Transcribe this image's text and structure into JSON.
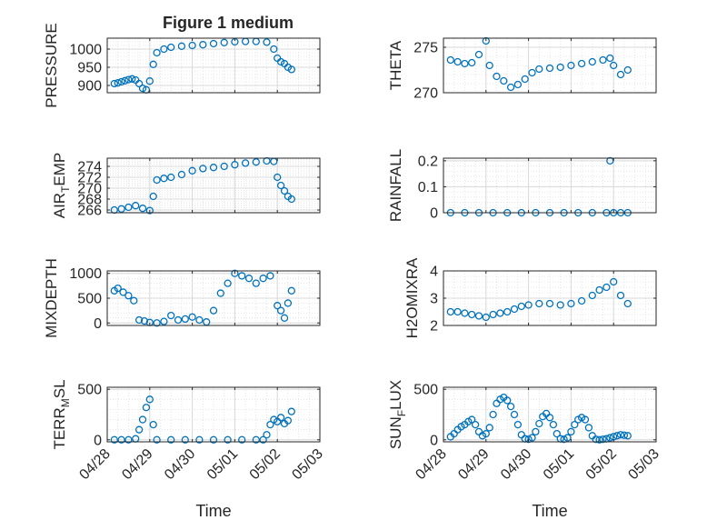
{
  "figure": {
    "title": "Figure 1 medium",
    "background": "#ffffff",
    "marker_color": "#0072bd",
    "axis_color": "#262626",
    "grid_color": "#dfdfdf"
  },
  "chart_data": [
    {
      "type": "scatter",
      "title": "Figure 1 medium",
      "ylabel": "PRESSURE",
      "xlabel": "",
      "xlim": [
        "04/28",
        "05/03"
      ],
      "ylim": [
        880,
        1030
      ],
      "yticks": [
        900,
        950,
        1000
      ],
      "xticks": [],
      "grid": true,
      "minor_grid": true,
      "x": [
        "04/28 04:00",
        "04/28 06:00",
        "04/28 08:00",
        "04/28 10:00",
        "04/28 12:00",
        "04/28 14:00",
        "04/28 16:00",
        "04/28 18:00",
        "04/28 20:00",
        "04/28 22:00",
        "04/29 00:00",
        "04/29 02:00",
        "04/29 04:00",
        "04/29 08:00",
        "04/29 12:00",
        "04/29 18:00",
        "04/30 00:00",
        "04/30 06:00",
        "04/30 12:00",
        "04/30 18:00",
        "05/01 00:00",
        "05/01 06:00",
        "05/01 12:00",
        "05/01 18:00",
        "05/01 22:00",
        "05/02 00:00",
        "05/02 02:00",
        "05/02 04:00",
        "05/02 06:00",
        "05/02 08:00"
      ],
      "y": [
        905,
        907,
        910,
        913,
        916,
        918,
        915,
        905,
        892,
        888,
        912,
        958,
        990,
        1000,
        1005,
        1008,
        1010,
        1012,
        1015,
        1018,
        1020,
        1021,
        1021,
        1019,
        1000,
        975,
        965,
        960,
        950,
        944
      ]
    },
    {
      "type": "scatter",
      "ylabel": "THETA",
      "xlabel": "",
      "xlim": [
        "04/28",
        "05/03"
      ],
      "ylim": [
        270,
        276
      ],
      "yticks": [
        270,
        275
      ],
      "xticks": [],
      "grid": true,
      "minor_grid": true,
      "x": [
        "04/28 04:00",
        "04/28 08:00",
        "04/28 12:00",
        "04/28 16:00",
        "04/28 20:00",
        "04/29 00:00",
        "04/29 02:00",
        "04/29 06:00",
        "04/29 10:00",
        "04/29 14:00",
        "04/29 18:00",
        "04/29 22:00",
        "04/30 02:00",
        "04/30 06:00",
        "04/30 12:00",
        "04/30 18:00",
        "05/01 00:00",
        "05/01 06:00",
        "05/01 12:00",
        "05/01 18:00",
        "05/01 22:00",
        "05/02 00:00",
        "05/02 04:00",
        "05/02 08:00"
      ],
      "y": [
        273.6,
        273.4,
        273.2,
        273.3,
        274.2,
        275.7,
        273.0,
        271.8,
        271.3,
        270.6,
        270.9,
        271.5,
        272.2,
        272.6,
        272.7,
        272.8,
        273.0,
        273.2,
        273.4,
        273.6,
        273.8,
        273.0,
        272.0,
        272.5
      ]
    },
    {
      "type": "scatter",
      "ylabel": "AIR_TEMP",
      "xlabel": "",
      "xlim": [
        "04/28",
        "05/03"
      ],
      "ylim": [
        265.5,
        275.5
      ],
      "yticks": [
        266,
        268,
        270,
        272,
        274
      ],
      "xticks": [],
      "grid": true,
      "minor_grid": true,
      "x": [
        "04/28 04:00",
        "04/28 08:00",
        "04/28 12:00",
        "04/28 16:00",
        "04/28 20:00",
        "04/29 00:00",
        "04/29 02:00",
        "04/29 04:00",
        "04/29 08:00",
        "04/29 12:00",
        "04/29 18:00",
        "04/30 00:00",
        "04/30 06:00",
        "04/30 12:00",
        "04/30 18:00",
        "05/01 00:00",
        "05/01 06:00",
        "05/01 12:00",
        "05/01 18:00",
        "05/01 22:00",
        "05/02 00:00",
        "05/02 02:00",
        "05/02 04:00",
        "05/02 06:00",
        "05/02 08:00"
      ],
      "y": [
        266.0,
        266.2,
        266.5,
        266.8,
        266.3,
        265.9,
        268.5,
        271.5,
        271.8,
        272.0,
        272.5,
        273.2,
        273.6,
        273.8,
        274.0,
        274.3,
        274.6,
        274.8,
        275.0,
        274.9,
        272.0,
        270.5,
        269.5,
        268.5,
        268.0
      ]
    },
    {
      "type": "scatter",
      "ylabel": "RAINFALL",
      "xlabel": "",
      "xlim": [
        "04/28",
        "05/03"
      ],
      "ylim": [
        0,
        0.21
      ],
      "yticks": [
        0,
        0.1,
        0.2
      ],
      "xticks": [],
      "grid": true,
      "minor_grid": true,
      "x": [
        "04/28 04:00",
        "04/28 12:00",
        "04/28 20:00",
        "04/29 04:00",
        "04/29 12:00",
        "04/29 20:00",
        "04/30 04:00",
        "04/30 12:00",
        "04/30 20:00",
        "05/01 04:00",
        "05/01 12:00",
        "05/01 20:00",
        "05/01 22:00",
        "05/02 00:00",
        "05/02 04:00",
        "05/02 08:00"
      ],
      "y": [
        0,
        0,
        0,
        0,
        0,
        0,
        0,
        0,
        0,
        0,
        0,
        0,
        0.2,
        0,
        0,
        0
      ]
    },
    {
      "type": "scatter",
      "ylabel": "MIXDEPTH",
      "xlabel": "",
      "xlim": [
        "04/28",
        "05/03"
      ],
      "ylim": [
        -50,
        1050
      ],
      "yticks": [
        0,
        500,
        1000
      ],
      "xticks": [],
      "grid": true,
      "minor_grid": true,
      "x": [
        "04/28 04:00",
        "04/28 06:00",
        "04/28 09:00",
        "04/28 12:00",
        "04/28 15:00",
        "04/28 18:00",
        "04/28 21:00",
        "04/29 00:00",
        "04/29 04:00",
        "04/29 08:00",
        "04/29 12:00",
        "04/29 16:00",
        "04/29 20:00",
        "04/30 00:00",
        "04/30 04:00",
        "04/30 08:00",
        "04/30 12:00",
        "04/30 16:00",
        "04/30 20:00",
        "05/01 00:00",
        "05/01 04:00",
        "05/01 08:00",
        "05/01 12:00",
        "05/01 16:00",
        "05/01 20:00",
        "05/02 00:00",
        "05/02 02:00",
        "05/02 04:00",
        "05/02 06:00",
        "05/02 08:00"
      ],
      "y": [
        650,
        700,
        620,
        550,
        450,
        60,
        40,
        10,
        0,
        30,
        150,
        60,
        80,
        120,
        60,
        20,
        250,
        600,
        800,
        1000,
        950,
        900,
        800,
        900,
        950,
        350,
        250,
        100,
        400,
        650
      ]
    },
    {
      "type": "scatter",
      "ylabel": "H2OMIXRA",
      "xlabel": "",
      "xlim": [
        "04/28",
        "05/03"
      ],
      "ylim": [
        2,
        4
      ],
      "yticks": [
        2,
        3,
        4
      ],
      "xticks": [],
      "grid": true,
      "minor_grid": true,
      "x": [
        "04/28 04:00",
        "04/28 08:00",
        "04/28 12:00",
        "04/28 16:00",
        "04/28 20:00",
        "04/29 00:00",
        "04/29 04:00",
        "04/29 08:00",
        "04/29 12:00",
        "04/29 16:00",
        "04/29 20:00",
        "04/30 00:00",
        "04/30 06:00",
        "04/30 12:00",
        "04/30 18:00",
        "05/01 00:00",
        "05/01 06:00",
        "05/01 12:00",
        "05/01 16:00",
        "05/01 20:00",
        "05/02 00:00",
        "05/02 04:00",
        "05/02 08:00"
      ],
      "y": [
        2.5,
        2.5,
        2.45,
        2.4,
        2.35,
        2.3,
        2.4,
        2.45,
        2.5,
        2.6,
        2.7,
        2.75,
        2.8,
        2.8,
        2.75,
        2.8,
        2.9,
        3.1,
        3.3,
        3.4,
        3.6,
        3.1,
        2.8
      ]
    },
    {
      "type": "scatter",
      "ylabel": "TERR_MSL",
      "xlabel": "Time",
      "xlim": [
        "04/28",
        "05/03"
      ],
      "ylim": [
        -20,
        520
      ],
      "yticks": [
        0,
        500
      ],
      "xticks": [
        "04/28",
        "04/29",
        "04/30",
        "05/01",
        "05/02",
        "05/03"
      ],
      "grid": true,
      "minor_grid": true,
      "x": [
        "04/28 04:00",
        "04/28 08:00",
        "04/28 12:00",
        "04/28 16:00",
        "04/28 18:00",
        "04/28 20:00",
        "04/28 22:00",
        "04/29 00:00",
        "04/29 02:00",
        "04/29 04:00",
        "04/29 12:00",
        "04/29 20:00",
        "04/30 04:00",
        "04/30 12:00",
        "04/30 20:00",
        "05/01 04:00",
        "05/01 12:00",
        "05/01 16:00",
        "05/01 18:00",
        "05/01 20:00",
        "05/01 22:00",
        "05/02 00:00",
        "05/02 02:00",
        "05/02 04:00",
        "05/02 06:00",
        "05/02 08:00"
      ],
      "y": [
        0,
        0,
        0,
        10,
        100,
        200,
        320,
        400,
        150,
        0,
        0,
        0,
        0,
        0,
        0,
        0,
        0,
        0,
        50,
        150,
        200,
        180,
        220,
        160,
        190,
        280
      ]
    },
    {
      "type": "scatter",
      "ylabel": "SUN_FLUX",
      "xlabel": "Time",
      "xlim": [
        "04/28",
        "05/03"
      ],
      "ylim": [
        -20,
        520
      ],
      "yticks": [
        0,
        500
      ],
      "xticks": [
        "04/28",
        "04/29",
        "04/30",
        "05/01",
        "05/02",
        "05/03"
      ],
      "grid": true,
      "minor_grid": true,
      "x": [
        "04/28 04:00",
        "04/28 06:00",
        "04/28 08:00",
        "04/28 10:00",
        "04/28 12:00",
        "04/28 14:00",
        "04/28 16:00",
        "04/28 18:00",
        "04/28 20:00",
        "04/28 22:00",
        "04/29 00:00",
        "04/29 02:00",
        "04/29 04:00",
        "04/29 06:00",
        "04/29 08:00",
        "04/29 10:00",
        "04/29 12:00",
        "04/29 14:00",
        "04/29 16:00",
        "04/29 18:00",
        "04/29 20:00",
        "04/29 22:00",
        "04/30 00:00",
        "04/30 02:00",
        "04/30 04:00",
        "04/30 06:00",
        "04/30 08:00",
        "04/30 10:00",
        "04/30 12:00",
        "04/30 14:00",
        "04/30 16:00",
        "04/30 18:00",
        "04/30 20:00",
        "04/30 22:00",
        "05/01 00:00",
        "05/01 02:00",
        "05/01 04:00",
        "05/01 06:00",
        "05/01 08:00",
        "05/01 10:00",
        "05/01 12:00",
        "05/01 14:00",
        "05/01 16:00",
        "05/01 18:00",
        "05/01 20:00",
        "05/01 22:00",
        "05/02 00:00",
        "05/02 02:00",
        "05/02 04:00",
        "05/02 06:00",
        "05/02 08:00"
      ],
      "y": [
        30,
        60,
        100,
        130,
        150,
        180,
        200,
        150,
        80,
        40,
        60,
        120,
        250,
        360,
        400,
        420,
        390,
        330,
        250,
        150,
        50,
        10,
        5,
        20,
        80,
        160,
        230,
        260,
        220,
        150,
        60,
        10,
        5,
        20,
        80,
        150,
        200,
        220,
        200,
        120,
        40,
        5,
        0,
        5,
        10,
        20,
        30,
        40,
        50,
        45,
        40
      ]
    }
  ]
}
